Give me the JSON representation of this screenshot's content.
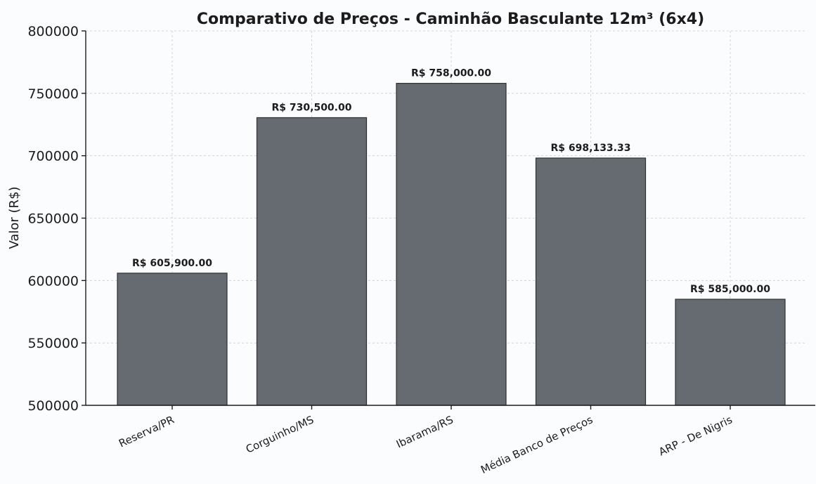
{
  "chart_data": {
    "type": "bar",
    "title": "Comparativo de Preços - Caminhão Basculante 12m³ (6x4)",
    "xlabel": "",
    "ylabel": "Valor (R$)",
    "ylim": [
      500000,
      800000
    ],
    "yticks": [
      500000,
      550000,
      600000,
      650000,
      700000,
      750000,
      800000
    ],
    "categories": [
      "Reserva/PR",
      "Corguinho/MS",
      "Ibarama/RS",
      "Média Banco de Preços",
      "ARP - De Nigris"
    ],
    "values": [
      605900,
      730500,
      758000,
      698133.33,
      585000
    ],
    "data_labels": [
      "R$ 605,900.00",
      "R$ 730,500.00",
      "R$ 758,000.00",
      "R$ 698,133.33",
      "R$ 585,000.00"
    ],
    "grid": true,
    "bar_color": "#656b70"
  }
}
